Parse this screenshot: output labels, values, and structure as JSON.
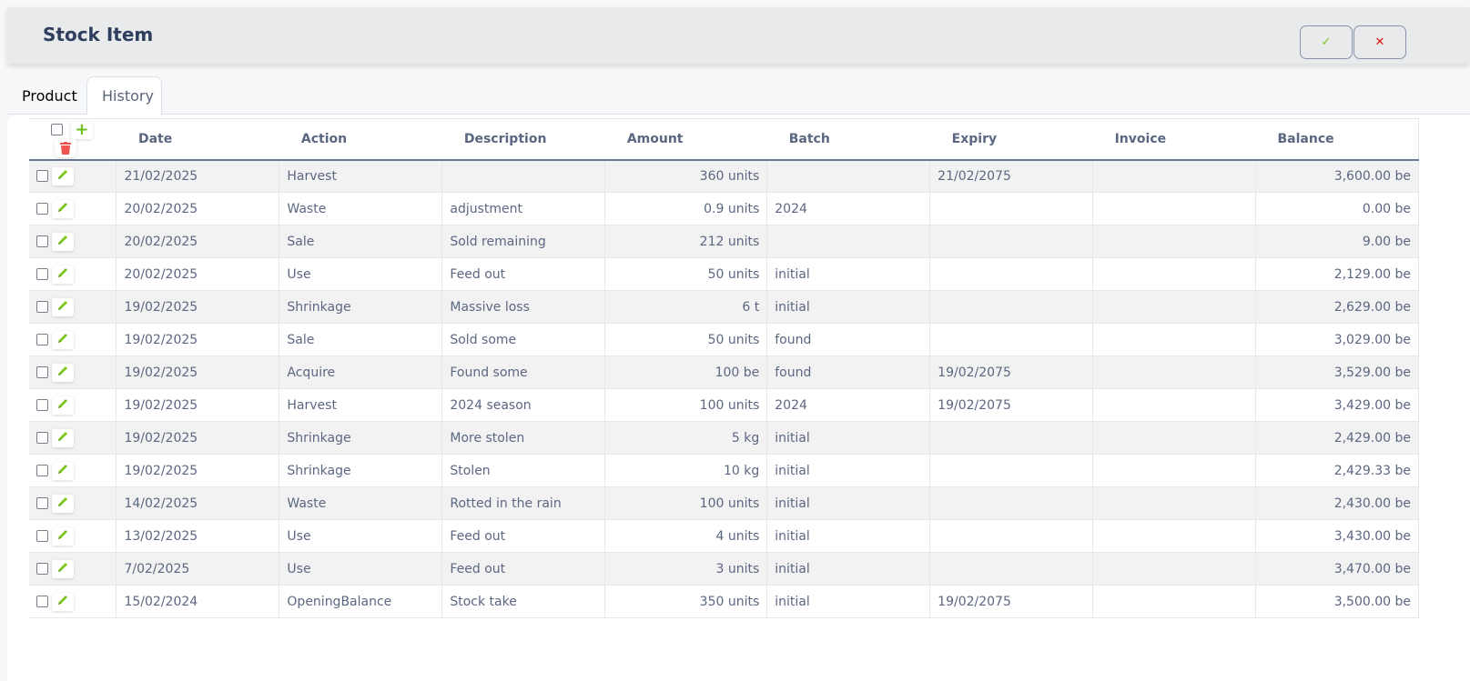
{
  "header": {
    "title": "Stock Item",
    "confirm_icon": "✓",
    "cancel_icon": "✕"
  },
  "tabs": [
    {
      "label": "Product"
    },
    {
      "label": "History"
    }
  ],
  "columns": [
    "Date",
    "Action",
    "Description",
    "Amount",
    "Batch",
    "Expiry",
    "Invoice",
    "Balance"
  ],
  "rows": [
    [
      "21/02/2025",
      "Harvest",
      "",
      "360 units",
      "",
      "21/02/2075",
      "",
      "3,600.00 be"
    ],
    [
      "20/02/2025",
      "Waste",
      "adjustment",
      "0.9 units",
      "2024",
      "",
      "",
      "0.00 be"
    ],
    [
      "20/02/2025",
      "Sale",
      "Sold remaining",
      "212 units",
      "",
      "",
      "",
      "9.00 be"
    ],
    [
      "20/02/2025",
      "Use",
      "Feed out",
      "50 units",
      "initial",
      "",
      "",
      "2,129.00 be"
    ],
    [
      "19/02/2025",
      "Shrinkage",
      "Massive loss",
      "6 t",
      "initial",
      "",
      "",
      "2,629.00 be"
    ],
    [
      "19/02/2025",
      "Sale",
      "Sold some",
      "50 units",
      "found",
      "",
      "",
      "3,029.00 be"
    ],
    [
      "19/02/2025",
      "Acquire",
      "Found some",
      "100 be",
      "found",
      "19/02/2075",
      "",
      "3,529.00 be"
    ],
    [
      "19/02/2025",
      "Harvest",
      "2024 season",
      "100 units",
      "2024",
      "19/02/2075",
      "",
      "3,429.00 be"
    ],
    [
      "19/02/2025",
      "Shrinkage",
      "More stolen",
      "5 kg",
      "initial",
      "",
      "",
      "2,429.00 be"
    ],
    [
      "19/02/2025",
      "Shrinkage",
      "Stolen",
      "10 kg",
      "initial",
      "",
      "",
      "2,429.33 be"
    ],
    [
      "14/02/2025",
      "Waste",
      "Rotted in the rain",
      "100 units",
      "initial",
      "",
      "",
      "2,430.00 be"
    ],
    [
      "13/02/2025",
      "Use",
      "Feed out",
      "4 units",
      "initial",
      "",
      "",
      "3,430.00 be"
    ],
    [
      "7/02/2025",
      "Use",
      "Feed out",
      "3 units",
      "initial",
      "",
      "",
      "3,470.00 be"
    ],
    [
      "15/02/2024",
      "OpeningBalance",
      "Stock take",
      "350 units",
      "initial",
      "19/02/2075",
      "",
      "3,500.00 be"
    ]
  ]
}
